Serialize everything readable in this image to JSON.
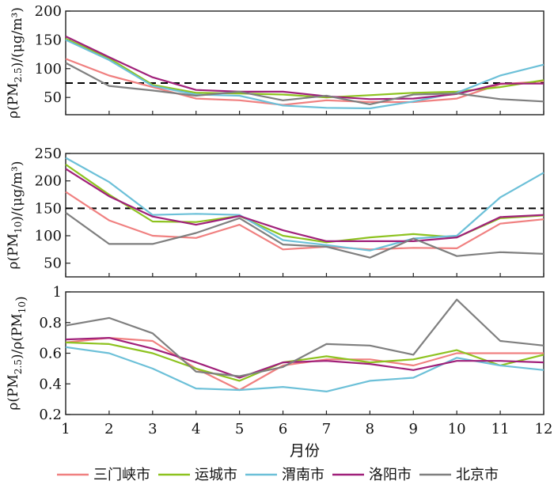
{
  "colors": {
    "三门峡市": "#f08080",
    "运城市": "#8dc21f",
    "渭南市": "#6cc0d8",
    "洛阳市": "#a0207a",
    "北京市": "#7f7f7f",
    "reference_line": "#000000"
  },
  "chart_data": {
    "type": "line",
    "shared_x": {
      "label": "月份",
      "values": [
        1,
        2,
        3,
        4,
        5,
        6,
        7,
        8,
        9,
        10,
        11,
        12
      ],
      "ticks": [
        "1",
        "2",
        "3",
        "4",
        "5",
        "6",
        "7",
        "8",
        "9",
        "10",
        "11",
        "12"
      ],
      "xlim": [
        1,
        12
      ]
    },
    "legend": {
      "placement": "bottom",
      "entries": [
        "三门峡市",
        "运城市",
        "渭南市",
        "洛阳市",
        "北京市"
      ]
    },
    "panels": [
      {
        "id": "pm25",
        "ylabel": "ρ(PM2.5)/(μg/m³)",
        "ylim": [
          20,
          200
        ],
        "yticks": [
          50,
          100,
          150,
          200
        ],
        "reference_line": 75,
        "series": [
          {
            "name": "三门峡市",
            "values": [
              117,
              88,
              68,
              48,
              45,
              37,
              45,
              42,
              42,
              48,
              73,
              78
            ]
          },
          {
            "name": "运城市",
            "values": [
              152,
              118,
              72,
              58,
              57,
              55,
              50,
              54,
              58,
              60,
              68,
              80
            ]
          },
          {
            "name": "渭南市",
            "values": [
              150,
              115,
              70,
              55,
              53,
              36,
              32,
              31,
              43,
              58,
              88,
              107
            ]
          },
          {
            "name": "洛阳市",
            "values": [
              156,
              120,
              85,
              63,
              60,
              60,
              52,
              47,
              48,
              56,
              74,
              74
            ]
          },
          {
            "name": "北京市",
            "values": [
              110,
              70,
              62,
              53,
              60,
              45,
              53,
              38,
              55,
              57,
              47,
              43
            ]
          }
        ]
      },
      {
        "id": "pm10",
        "ylabel": "ρ(PM10)/(μg/m³)",
        "ylim": [
          25,
          250
        ],
        "yticks": [
          50,
          100,
          150,
          200,
          250
        ],
        "reference_line": 150,
        "series": [
          {
            "name": "三门峡市",
            "values": [
              180,
              128,
              100,
              96,
              120,
              75,
              80,
              75,
              78,
              77,
              122,
              130
            ]
          },
          {
            "name": "运城市",
            "values": [
              230,
              175,
              126,
              125,
              136,
              100,
              88,
              97,
              103,
              97,
              132,
              137
            ]
          },
          {
            "name": "渭南市",
            "values": [
              242,
              198,
              138,
              140,
              138,
              92,
              83,
              73,
              95,
              100,
              170,
              215
            ]
          },
          {
            "name": "洛阳市",
            "values": [
              222,
              172,
              135,
              120,
              136,
              110,
              90,
              90,
              90,
              97,
              134,
              138
            ]
          },
          {
            "name": "北京市",
            "values": [
              142,
              85,
              85,
              105,
              132,
              84,
              80,
              60,
              95,
              63,
              70,
              67
            ]
          }
        ]
      },
      {
        "id": "ratio",
        "ylabel": "ρ(PM2.5)/ρ(PM10)",
        "ylim": [
          0.2,
          1.0
        ],
        "yticks": [
          0.2,
          0.4,
          0.6,
          0.8,
          1.0
        ],
        "reference_line": null,
        "series": [
          {
            "name": "三门峡市",
            "values": [
              0.67,
              0.7,
              0.68,
              0.5,
              0.36,
              0.52,
              0.56,
              0.56,
              0.52,
              0.6,
              0.6,
              0.6
            ]
          },
          {
            "name": "运城市",
            "values": [
              0.67,
              0.66,
              0.6,
              0.5,
              0.42,
              0.54,
              0.58,
              0.54,
              0.56,
              0.62,
              0.52,
              0.59
            ]
          },
          {
            "name": "渭南市",
            "values": [
              0.64,
              0.6,
              0.5,
              0.37,
              0.36,
              0.38,
              0.35,
              0.42,
              0.44,
              0.57,
              0.52,
              0.49
            ]
          },
          {
            "name": "洛阳市",
            "values": [
              0.69,
              0.7,
              0.63,
              0.54,
              0.44,
              0.54,
              0.55,
              0.53,
              0.49,
              0.55,
              0.55,
              0.54
            ]
          },
          {
            "name": "北京市",
            "values": [
              0.78,
              0.83,
              0.73,
              0.48,
              0.45,
              0.51,
              0.66,
              0.65,
              0.59,
              0.95,
              0.68,
              0.65
            ]
          }
        ]
      }
    ]
  }
}
